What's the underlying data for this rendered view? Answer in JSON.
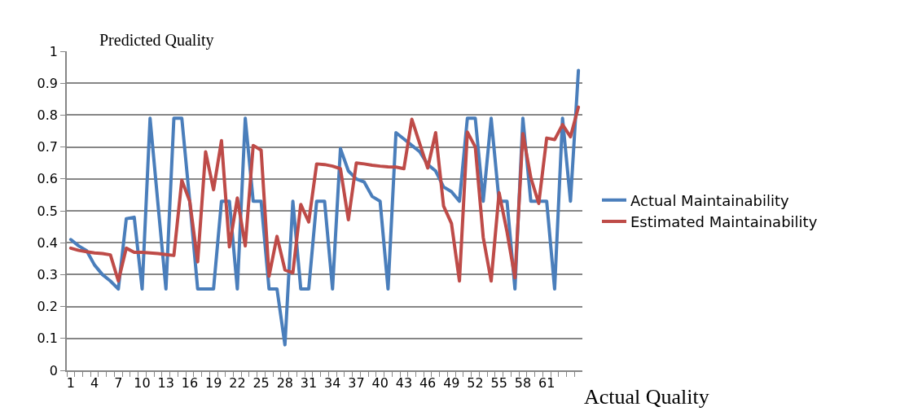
{
  "chart_data": {
    "type": "line",
    "ylabel": "Predicted Quality",
    "xlabel": "Actual Quality",
    "categories": [
      "1",
      null,
      null,
      "4",
      null,
      null,
      "7",
      null,
      null,
      "10",
      null,
      null,
      "13",
      null,
      null,
      "16",
      null,
      null,
      "19",
      null,
      null,
      "22",
      null,
      null,
      "25",
      null,
      null,
      "28",
      null,
      null,
      "31",
      null,
      null,
      "34",
      null,
      null,
      "37",
      null,
      null,
      "40",
      null,
      null,
      "43",
      null,
      null,
      "46",
      null,
      null,
      "49",
      null,
      null,
      "52",
      null,
      null,
      "55",
      null,
      null,
      "58",
      null,
      null,
      "61",
      null,
      null,
      null,
      null
    ],
    "series": [
      {
        "name": "Actual Maintainability",
        "color": "#4a7ebb",
        "values": [
          0.41,
          0.39,
          0.375,
          0.33,
          0.3,
          0.28,
          0.255,
          0.475,
          0.48,
          0.255,
          0.79,
          0.52,
          0.255,
          0.79,
          0.79,
          0.53,
          0.255,
          0.255,
          0.255,
          0.53,
          0.53,
          0.255,
          0.79,
          0.53,
          0.53,
          0.255,
          0.255,
          0.08,
          0.53,
          0.255,
          0.255,
          0.53,
          0.53,
          0.255,
          0.695,
          0.625,
          0.6,
          0.59,
          0.545,
          0.53,
          0.255,
          0.745,
          0.725,
          0.705,
          0.685,
          0.645,
          0.625,
          0.575,
          0.56,
          0.53,
          0.79,
          0.79,
          0.53,
          0.79,
          0.53,
          0.53,
          0.255,
          0.79,
          0.53,
          0.53,
          0.53,
          0.255,
          0.79,
          0.53,
          0.94
        ]
      },
      {
        "name": "Estimated Maintainability",
        "color": "#be4b48",
        "values": [
          0.383,
          0.376,
          0.372,
          0.368,
          0.366,
          0.362,
          0.28,
          0.383,
          0.37,
          0.37,
          0.368,
          0.366,
          0.363,
          0.36,
          0.596,
          0.53,
          0.34,
          0.685,
          0.566,
          0.72,
          0.387,
          0.54,
          0.39,
          0.705,
          0.69,
          0.295,
          0.42,
          0.315,
          0.306,
          0.52,
          0.465,
          0.647,
          0.645,
          0.64,
          0.632,
          0.472,
          0.65,
          0.647,
          0.643,
          0.64,
          0.638,
          0.637,
          0.632,
          0.787,
          0.71,
          0.634,
          0.745,
          0.515,
          0.46,
          0.28,
          0.747,
          0.7,
          0.417,
          0.28,
          0.557,
          0.434,
          0.29,
          0.742,
          0.604,
          0.523,
          0.728,
          0.723,
          0.77,
          0.732,
          0.825
        ]
      }
    ],
    "ylim": [
      0,
      1
    ],
    "yticks": [
      0,
      0.1,
      0.2,
      0.3,
      0.4,
      0.5,
      0.6,
      0.7,
      0.8,
      0.9,
      1
    ],
    "grid": "y",
    "legend": "right",
    "marker": "none",
    "line_style": "solid"
  }
}
